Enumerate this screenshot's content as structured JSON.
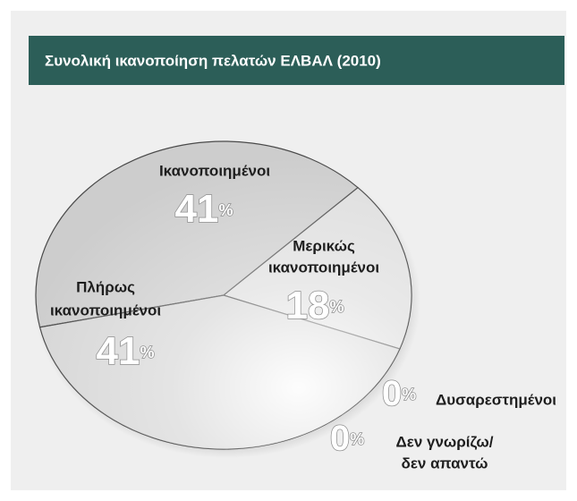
{
  "chart_data": {
    "type": "pie",
    "title": "Συνολική ικανοποίηση πελατών ΕΛΒΑΛ (2010)",
    "categories": [
      [
        "Ικανοποιημένοι"
      ],
      [
        "Μερικώς",
        "ικανοποιημένοι"
      ],
      [
        "Πλήρως",
        "ικανοποιημένοι"
      ],
      [
        "Δυσαρεστημένοι"
      ],
      [
        "Δεν γνωρίζω/",
        "δεν απαντώ"
      ]
    ],
    "values": [
      41,
      18,
      41,
      0,
      0
    ],
    "value_unit": "%",
    "colors": [
      "#cdcdcd",
      "#dedede",
      "#d6d6d6",
      "#d0d0d0",
      "#d0d0d0"
    ]
  }
}
